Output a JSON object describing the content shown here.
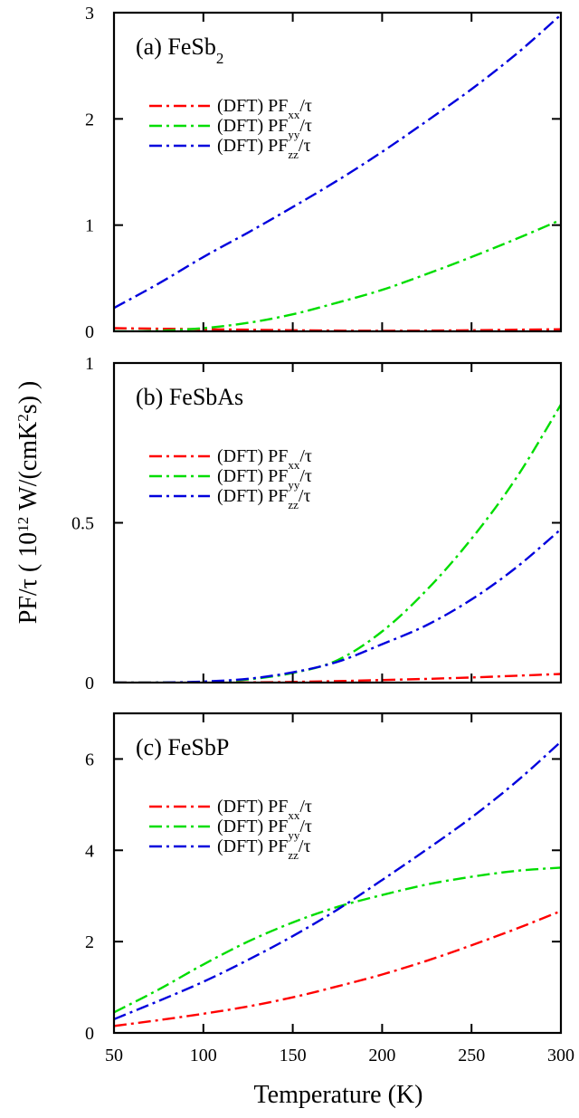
{
  "chart_data": {
    "type": "line",
    "y_axis_title": {
      "prefix": "PF/τ ( 10",
      "exp": "12",
      "mid": " W/(cmK",
      "exp2": "2",
      "suffix": "s) )"
    },
    "x_axis_title": "Temperature (K)",
    "x_ticks": [
      "50",
      "100",
      "150",
      "200",
      "250",
      "300"
    ],
    "xlim": [
      50,
      300
    ],
    "panels": [
      {
        "title": {
          "base": "(a) FeSb",
          "sub": "2",
          "after": ""
        },
        "ylim": [
          0,
          3
        ],
        "y_ticks": [
          {
            "v": 0,
            "label": "0"
          },
          {
            "v": 1,
            "label": "1"
          },
          {
            "v": 2,
            "label": "2"
          },
          {
            "v": 3,
            "label": "3"
          }
        ],
        "legend": [
          {
            "prefix": "(DFT) PF",
            "sub": "xx",
            "suffix": "/τ"
          },
          {
            "prefix": "(DFT) PF",
            "sub": "yy",
            "suffix": "/τ"
          },
          {
            "prefix": "(DFT) PF",
            "sub": "zz",
            "suffix": "/τ"
          }
        ],
        "series": [
          {
            "name": "xx",
            "color": "#ff0000",
            "x": [
              50,
              100,
              150,
              200,
              250,
              300
            ],
            "y": [
              0.03,
              0.02,
              0.01,
              0.005,
              0.01,
              0.02
            ]
          },
          {
            "name": "yy",
            "color": "#00dd00",
            "x": [
              50,
              75,
              100,
              125,
              150,
              175,
              200,
              225,
              250,
              275,
              300
            ],
            "y": [
              0.0,
              0.005,
              0.03,
              0.08,
              0.16,
              0.27,
              0.39,
              0.54,
              0.7,
              0.87,
              1.05
            ]
          },
          {
            "name": "zz",
            "color": "#0000dd",
            "x": [
              50,
              75,
              100,
              125,
              150,
              175,
              200,
              225,
              250,
              275,
              300
            ],
            "y": [
              0.22,
              0.45,
              0.7,
              0.93,
              1.17,
              1.42,
              1.69,
              1.98,
              2.28,
              2.61,
              2.98
            ]
          }
        ]
      },
      {
        "title": {
          "base": "(b) FeSbAs",
          "sub": "",
          "after": ""
        },
        "ylim": [
          0,
          1
        ],
        "y_ticks": [
          {
            "v": 0,
            "label": "0"
          },
          {
            "v": 0.5,
            "label": "0.5"
          },
          {
            "v": 1,
            "label": "1"
          }
        ],
        "legend": [
          {
            "prefix": "(DFT) PF",
            "sub": "xx",
            "suffix": "/τ"
          },
          {
            "prefix": "(DFT) PF",
            "sub": "yy",
            "suffix": "/τ"
          },
          {
            "prefix": "(DFT) PF",
            "sub": "zz",
            "suffix": "/τ"
          }
        ],
        "series": [
          {
            "name": "xx",
            "color": "#ff0000",
            "x": [
              50,
              100,
              150,
              200,
              250,
              300
            ],
            "y": [
              0.0,
              0.0,
              0.002,
              0.008,
              0.016,
              0.027
            ]
          },
          {
            "name": "yy",
            "color": "#00dd00",
            "x": [
              50,
              75,
              100,
              125,
              150,
              175,
              200,
              225,
              250,
              275,
              300
            ],
            "y": [
              0.0,
              0.0,
              0.002,
              0.01,
              0.03,
              0.07,
              0.16,
              0.29,
              0.45,
              0.64,
              0.87
            ]
          },
          {
            "name": "zz",
            "color": "#0000dd",
            "x": [
              50,
              75,
              100,
              125,
              150,
              175,
              200,
              225,
              250,
              275,
              300
            ],
            "y": [
              0.0,
              0.0,
              0.003,
              0.012,
              0.032,
              0.065,
              0.12,
              0.18,
              0.26,
              0.36,
              0.48
            ]
          }
        ]
      },
      {
        "title": {
          "base": "(c) FeSbP",
          "sub": "",
          "after": ""
        },
        "ylim": [
          0,
          7
        ],
        "y_ticks": [
          {
            "v": 0,
            "label": "0"
          },
          {
            "v": 2,
            "label": "2"
          },
          {
            "v": 4,
            "label": "4"
          },
          {
            "v": 6,
            "label": "6"
          }
        ],
        "legend": [
          {
            "prefix": "(DFT) PF",
            "sub": "xx",
            "suffix": "/τ"
          },
          {
            "prefix": "(DFT) PF",
            "sub": "yy",
            "suffix": "/τ"
          },
          {
            "prefix": "(DFT) PF",
            "sub": "zz",
            "suffix": "/τ"
          }
        ],
        "series": [
          {
            "name": "xx",
            "color": "#ff0000",
            "x": [
              50,
              75,
              100,
              125,
              150,
              175,
              200,
              225,
              250,
              275,
              300
            ],
            "y": [
              0.15,
              0.28,
              0.42,
              0.58,
              0.78,
              1.02,
              1.28,
              1.58,
              1.92,
              2.28,
              2.67
            ]
          },
          {
            "name": "yy",
            "color": "#00dd00",
            "x": [
              50,
              75,
              100,
              125,
              150,
              175,
              200,
              225,
              250,
              275,
              300
            ],
            "y": [
              0.45,
              0.95,
              1.5,
              2.0,
              2.42,
              2.76,
              3.02,
              3.25,
              3.42,
              3.55,
              3.62
            ]
          },
          {
            "name": "zz",
            "color": "#0000dd",
            "x": [
              50,
              75,
              100,
              125,
              150,
              175,
              200,
              225,
              250,
              275,
              300
            ],
            "y": [
              0.3,
              0.7,
              1.12,
              1.6,
              2.12,
              2.7,
              3.35,
              4.02,
              4.72,
              5.5,
              6.38
            ]
          }
        ]
      }
    ]
  }
}
